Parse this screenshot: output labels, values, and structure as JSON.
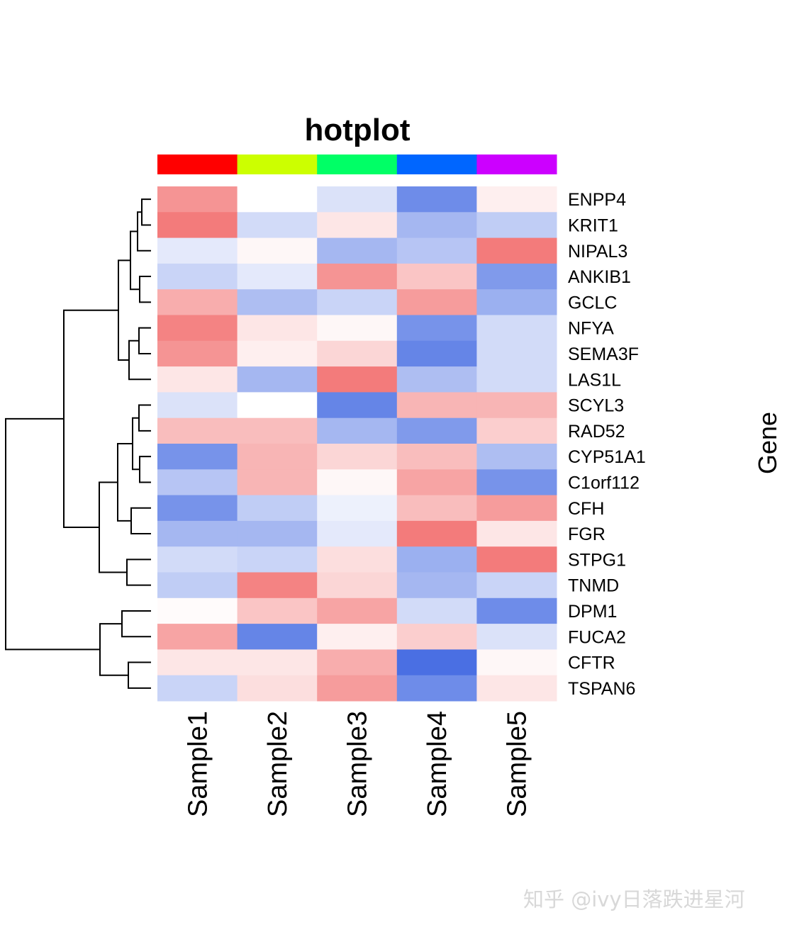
{
  "chart_data": {
    "type": "heatmap",
    "title": "hotplot",
    "columns": [
      "Sample1",
      "Sample2",
      "Sample3",
      "Sample4",
      "Sample5"
    ],
    "column_annotation_colors": [
      "#ff0000",
      "#ccff00",
      "#00ff66",
      "#0066ff",
      "#cc00ff"
    ],
    "rows": [
      "ENPP4",
      "KRIT1",
      "NIPAL3",
      "ANKIB1",
      "GCLC",
      "NFYA",
      "SEMA3F",
      "LAS1L",
      "SCYL3",
      "RAD52",
      "CYP51A1",
      "C1orf112",
      "CFH",
      "FGR",
      "STPG1",
      "TNMD",
      "DPM1",
      "FUCA2",
      "CFTR",
      "TSPAN6"
    ],
    "values": [
      [
        1.3,
        0,
        -0.4,
        -1.6,
        0.2
      ],
      [
        1.6,
        -0.5,
        0.3,
        -1.0,
        -0.7
      ],
      [
        -0.3,
        0.1,
        -1.0,
        -0.8,
        1.6
      ],
      [
        -0.6,
        -0.3,
        1.3,
        0.7,
        -1.4
      ],
      [
        1.0,
        -0.9,
        -0.6,
        1.2,
        -1.1
      ],
      [
        1.5,
        0.3,
        0.1,
        -1.5,
        -0.5
      ],
      [
        1.3,
        0.2,
        0.5,
        -1.7,
        -0.5
      ],
      [
        0.3,
        -1.0,
        1.6,
        -0.9,
        -0.5
      ],
      [
        -0.4,
        0,
        -1.7,
        0.9,
        0.9
      ],
      [
        0.8,
        0.8,
        -1.0,
        -1.4,
        0.6
      ],
      [
        -1.5,
        0.9,
        0.5,
        0.8,
        -0.9
      ],
      [
        -0.8,
        0.9,
        0.1,
        1.1,
        -1.5
      ],
      [
        -1.5,
        -0.7,
        -0.2,
        0.8,
        1.2
      ],
      [
        -1.0,
        -1.0,
        -0.3,
        1.6,
        0.3
      ],
      [
        -0.5,
        -0.6,
        0.4,
        -1.1,
        1.6
      ],
      [
        -0.7,
        1.5,
        0.5,
        -1.0,
        -0.6
      ],
      [
        0.05,
        0.7,
        1.1,
        -0.5,
        -1.6
      ],
      [
        1.1,
        -1.7,
        0.2,
        0.6,
        -0.4
      ],
      [
        0.3,
        0.3,
        1.0,
        -2.0,
        0.1
      ],
      [
        -0.6,
        0.4,
        1.2,
        -1.6,
        0.3
      ]
    ],
    "value_range": [
      -2,
      2
    ],
    "color_low": "#4a6fe3",
    "color_mid": "#ffffff",
    "color_high": "#f05a5a",
    "row_dendrogram": true,
    "annotation_label": "Gene"
  },
  "watermark": "知乎 @ivy日落跌进星河"
}
